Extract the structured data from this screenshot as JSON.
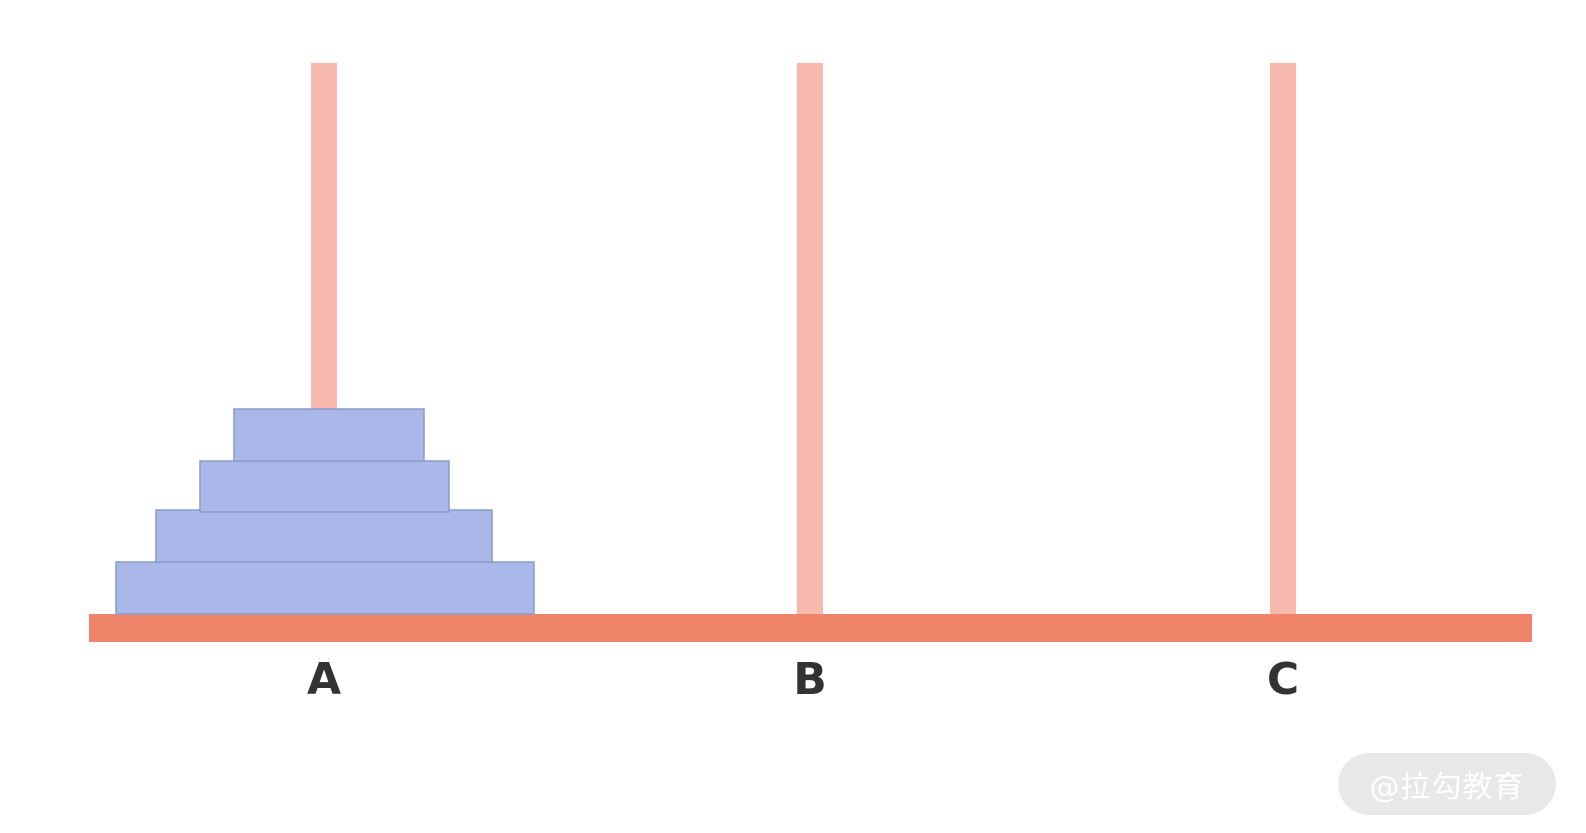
{
  "colors": {
    "peg": "#f7b9ae",
    "base": "#ef8468",
    "disk_fill": "#a9b8e8",
    "disk_stroke": "#8a9bc9",
    "label": "#333333",
    "watermark_bg": "#e6e6e6"
  },
  "pegs": [
    {
      "label": "A",
      "disks": 4
    },
    {
      "label": "B",
      "disks": 0
    },
    {
      "label": "C",
      "disks": 0
    }
  ],
  "watermark": "@拉勾教育"
}
